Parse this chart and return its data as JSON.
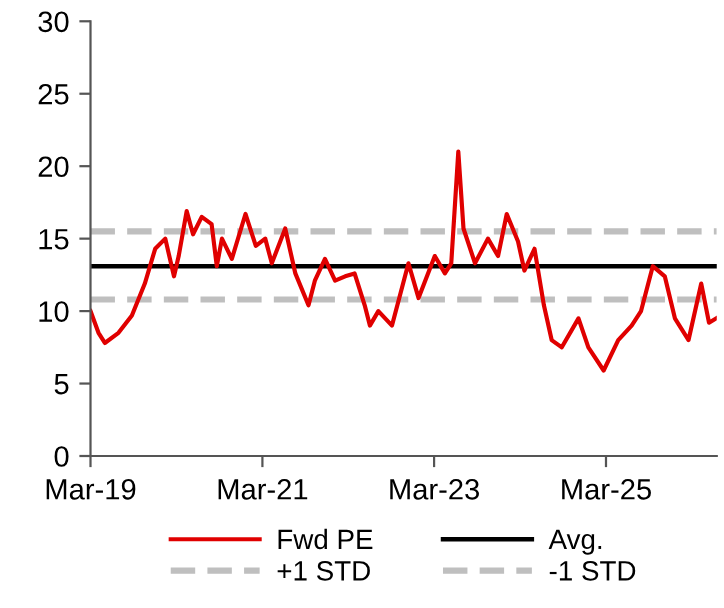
{
  "chart_data": {
    "type": "line",
    "x": [
      "2019-03-01",
      "2019-04-04",
      "2019-05-01",
      "2019-06-28",
      "2019-08-24",
      "2019-10-18",
      "2019-12-01",
      "2020-01-13",
      "2020-02-19",
      "2020-03-10",
      "2020-04-13",
      "2020-05-10",
      "2020-06-16",
      "2020-07-28",
      "2020-08-19",
      "2020-09-10",
      "2020-10-22",
      "2020-12-19",
      "2021-02-01",
      "2021-03-13",
      "2021-04-10",
      "2021-06-06",
      "2021-07-19",
      "2021-09-13",
      "2021-10-10",
      "2021-11-22",
      "2022-01-04",
      "2022-02-16",
      "2022-03-28",
      "2022-05-10",
      "2022-06-01",
      "2022-07-07",
      "2022-09-03",
      "2022-11-12",
      "2022-12-25",
      "2023-03-04",
      "2023-04-16",
      "2023-05-13",
      "2023-06-12",
      "2023-07-04",
      "2023-08-22",
      "2023-10-16",
      "2023-11-28",
      "2024-01-04",
      "2024-02-21",
      "2024-03-19",
      "2024-05-01",
      "2024-06-10",
      "2024-07-13",
      "2024-08-25",
      "2024-11-04",
      "2024-12-16",
      "2025-02-19",
      "2025-04-22",
      "2025-06-18",
      "2025-07-28",
      "2025-09-16",
      "2025-11-06",
      "2025-12-19",
      "2026-02-15",
      "2026-04-10",
      "2026-05-13",
      "2026-06-13"
    ],
    "series": [
      {
        "name": "Fwd PE",
        "color": "#e00000",
        "values": [
          10.0,
          8.5,
          7.8,
          8.5,
          9.7,
          11.9,
          14.3,
          15.0,
          12.4,
          13.8,
          16.9,
          15.3,
          16.5,
          16.0,
          13.1,
          15.0,
          13.6,
          16.7,
          14.5,
          15.0,
          13.3,
          15.7,
          12.6,
          10.4,
          12.1,
          13.6,
          12.1,
          12.4,
          12.6,
          10.4,
          9.0,
          10.0,
          9.0,
          13.3,
          10.9,
          13.8,
          12.6,
          13.3,
          21.0,
          15.7,
          13.3,
          15.0,
          13.8,
          16.7,
          14.8,
          12.8,
          14.3,
          10.4,
          8.0,
          7.5,
          9.5,
          7.5,
          5.9,
          8.0,
          9.0,
          10.0,
          13.1,
          12.4,
          9.5,
          8.0,
          11.9,
          9.2,
          9.5
        ]
      }
    ],
    "ref_lines": [
      {
        "axis": "y",
        "value": 13.1,
        "label": "Avg.",
        "color": "#000000",
        "line_style": "solid"
      },
      {
        "axis": "y",
        "value": 15.5,
        "label": "+1 STD",
        "color": "#bfbfbf",
        "line_style": "dashed"
      },
      {
        "axis": "y",
        "value": 10.8,
        "label": "-1 STD",
        "color": "#bfbfbf",
        "line_style": "dashed"
      }
    ],
    "xlim": [
      "2019-03-01",
      "2026-06-15"
    ],
    "xticks": [
      {
        "value": "2019-03-01",
        "label": "Mar-19"
      },
      {
        "value": "2021-03-01",
        "label": "Mar-21"
      },
      {
        "value": "2023-03-01",
        "label": "Mar-23"
      },
      {
        "value": "2025-03-01",
        "label": "Mar-25"
      }
    ],
    "ylim": [
      0,
      30
    ],
    "yticks": [
      0,
      5,
      10,
      15,
      20,
      25,
      30
    ],
    "grid": false,
    "legend": "bottom",
    "marker": "none",
    "line_style": "solid"
  }
}
